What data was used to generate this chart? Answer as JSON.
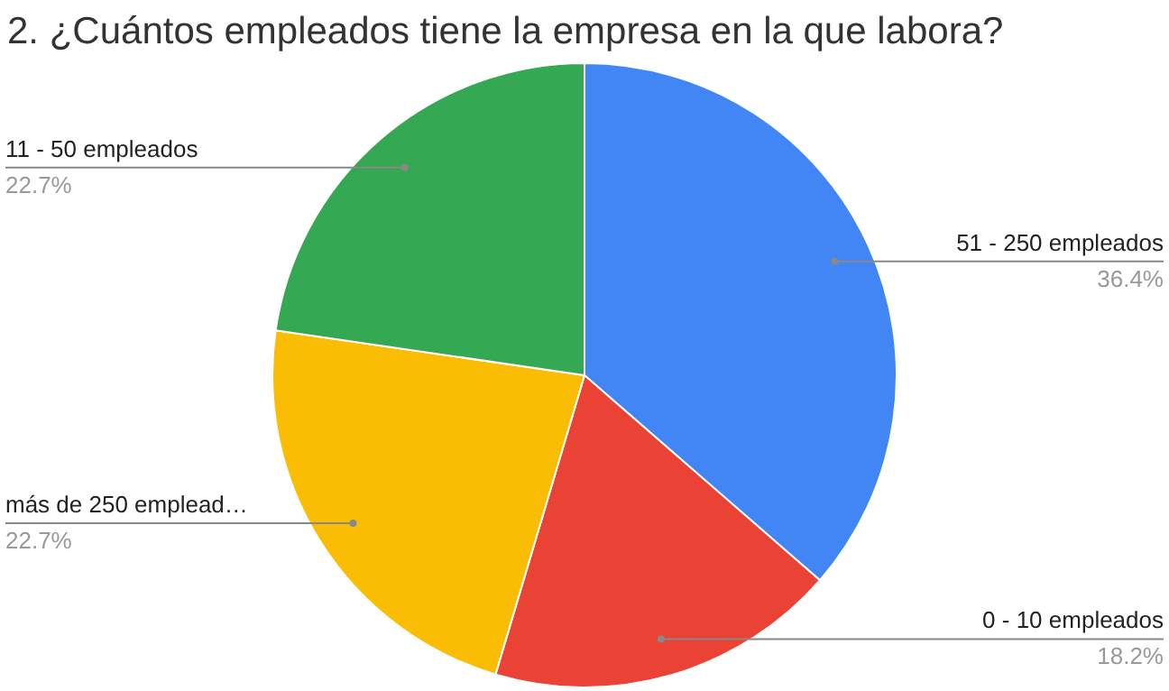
{
  "chart_data": {
    "type": "pie",
    "title": "2. ¿Cuántos empleados tiene la empresa en la que labora?",
    "categories": [
      "51 - 250 empleados",
      "0 - 10 empleados",
      "más de 250 emplead…",
      "11 - 50 empleados"
    ],
    "values": [
      36.4,
      18.2,
      22.7,
      22.7
    ],
    "colors": [
      "#4285f4",
      "#ea4335",
      "#fbbc04",
      "#34a853"
    ],
    "value_labels": [
      "36.4%",
      "18.2%",
      "22.7%",
      "22.7%"
    ]
  }
}
